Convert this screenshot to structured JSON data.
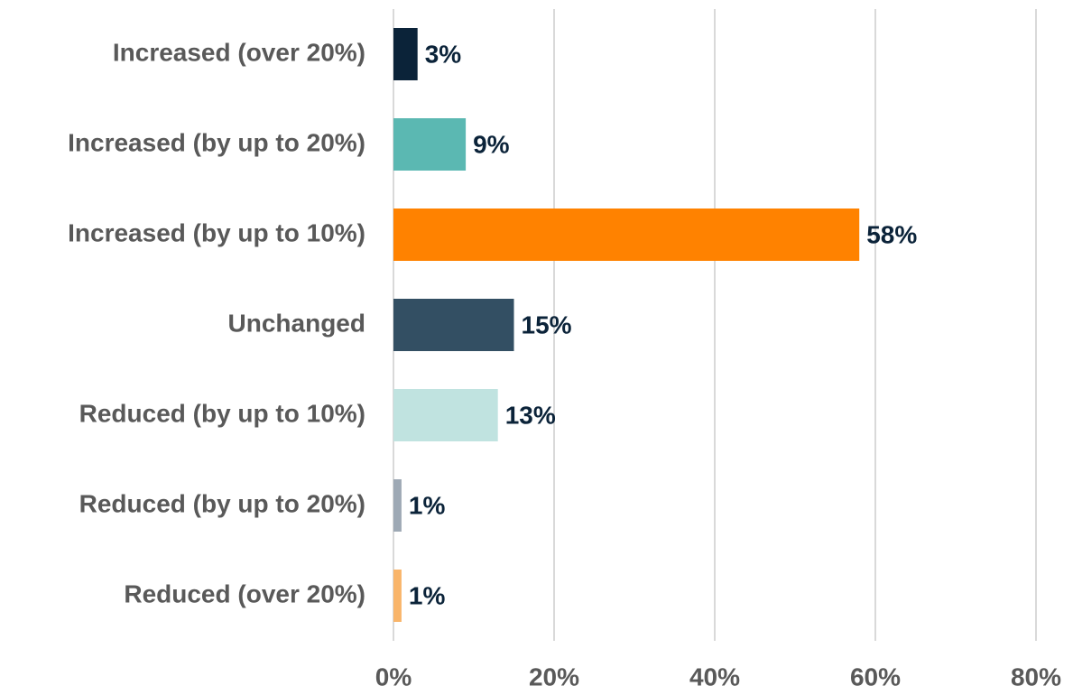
{
  "chart_data": {
    "type": "hbar",
    "categories": [
      "Increased (over 20%)",
      "Increased (by up to 20%)",
      "Increased (by up to 10%)",
      "Unchanged",
      "Reduced (by up to 10%)",
      "Reduced (by up to 20%)",
      "Reduced (over 20%)"
    ],
    "values": [
      3,
      9,
      58,
      15,
      13,
      1,
      1
    ],
    "value_labels": [
      "3%",
      "9%",
      "58%",
      "15%",
      "13%",
      "1%",
      "1%"
    ],
    "colors": [
      "#0b2339",
      "#5bb8b2",
      "#ff8200",
      "#334f63",
      "#c0e3e0",
      "#9ea9b5",
      "#f9b56a"
    ],
    "xlim": [
      0,
      80
    ],
    "xticks": [
      {
        "value": 0,
        "label": "0%"
      },
      {
        "value": 20,
        "label": "20%"
      },
      {
        "value": 40,
        "label": "40%"
      },
      {
        "value": 60,
        "label": "60%"
      },
      {
        "value": 80,
        "label": "80%"
      }
    ],
    "grid": true
  }
}
